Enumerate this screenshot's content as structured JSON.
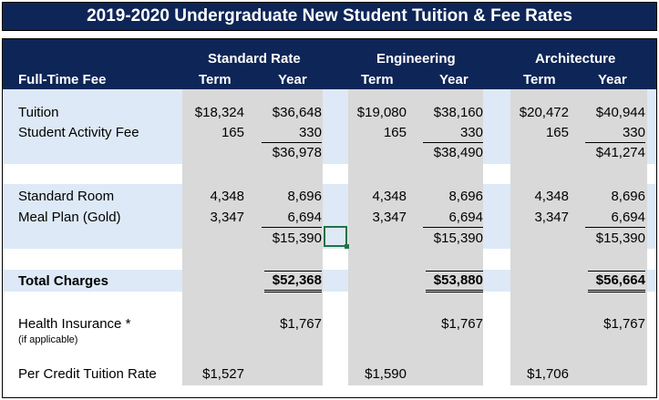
{
  "title": "2019-2020 Undergraduate New Student Tuition & Fee Rates",
  "header": {
    "row_label": "Full-Time Fee",
    "groups": [
      "Standard Rate",
      "Engineering",
      "Architecture"
    ],
    "term": "Term",
    "year": "Year"
  },
  "rows": {
    "tuition": {
      "label": "Tuition",
      "values": [
        "$18,324",
        "$36,648",
        "$19,080",
        "$38,160",
        "$20,472",
        "$40,944"
      ]
    },
    "activity": {
      "label": "Student Activity Fee",
      "values": [
        "165",
        "330",
        "165",
        "330",
        "165",
        "330"
      ]
    },
    "subtotal1": {
      "values": [
        "$36,978",
        "$38,490",
        "$41,274"
      ]
    },
    "room": {
      "label": "Standard Room",
      "values": [
        "4,348",
        "8,696",
        "4,348",
        "8,696",
        "4,348",
        "8,696"
      ]
    },
    "meal": {
      "label": "Meal Plan (Gold)",
      "values": [
        "3,347",
        "6,694",
        "3,347",
        "6,694",
        "3,347",
        "6,694"
      ]
    },
    "subtotal2": {
      "values": [
        "$15,390",
        "$15,390",
        "$15,390"
      ]
    },
    "total": {
      "label": "Total Charges",
      "values": [
        "$52,368",
        "$53,880",
        "$56,664"
      ]
    },
    "health": {
      "label": "Health Insurance *",
      "note": "(if applicable)",
      "values": [
        "$1,767",
        "$1,767",
        "$1,767"
      ]
    },
    "credit": {
      "label": "Per Credit Tuition Rate",
      "values": [
        "$1,527",
        "$1,590",
        "$1,706"
      ]
    }
  },
  "colors": {
    "navy": "#0e2557",
    "band": "#dde9f6",
    "gray": "#d9d9d9",
    "selection": "#217346"
  }
}
